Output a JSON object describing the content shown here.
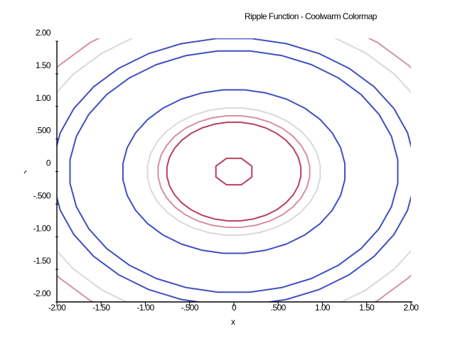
{
  "chart_data": {
    "type": "contour",
    "title": "Ripple Function - Coolwarm Colormap",
    "xlabel": "x",
    "ylabel": "y",
    "xlim": [
      -2.0,
      2.0
    ],
    "ylim": [
      -2.0,
      2.0
    ],
    "xticks": [
      {
        "value": -2.0,
        "label": "-2.00"
      },
      {
        "value": -1.5,
        "label": "-1.50"
      },
      {
        "value": -1.0,
        "label": "-1.00"
      },
      {
        "value": -0.5,
        "label": "-.500"
      },
      {
        "value": 0.0,
        "label": "0"
      },
      {
        "value": 0.5,
        "label": ".500"
      },
      {
        "value": 1.0,
        "label": "1.00"
      },
      {
        "value": 1.5,
        "label": "1.50"
      },
      {
        "value": 2.0,
        "label": "2.00"
      }
    ],
    "yticks": [
      {
        "value": 2.0,
        "label": "2.00"
      },
      {
        "value": 1.5,
        "label": "1.50"
      },
      {
        "value": 1.0,
        "label": "1.00"
      },
      {
        "value": 0.5,
        "label": ".500"
      },
      {
        "value": 0.0,
        "label": "0"
      },
      {
        "value": -0.5,
        "label": "-.500"
      },
      {
        "value": -1.0,
        "label": "-1.00"
      },
      {
        "value": -1.5,
        "label": "-1.50"
      },
      {
        "value": -2.0,
        "label": "-2.00"
      }
    ],
    "grid": false,
    "contours": [
      {
        "level": "high",
        "color": "#b8405e",
        "radius": 0.22
      },
      {
        "level": "high",
        "color": "#b8405e",
        "radius": 0.76
      },
      {
        "level": "mid-high",
        "color": "#d6909f",
        "radius": 0.86
      },
      {
        "level": "neutral",
        "color": "#d9d9d9",
        "radius": 0.98
      },
      {
        "level": "low",
        "color": "#3f4fbf",
        "radius": 1.26
      },
      {
        "level": "low",
        "color": "#3f4fbf",
        "radius": 1.86
      },
      {
        "level": "low",
        "color": "#3f4fbf",
        "radius": 2.05
      },
      {
        "level": "neutral",
        "color": "#d9d9d9",
        "radius": 2.35
      },
      {
        "level": "mid-high",
        "color": "#d6909f",
        "radius": 2.56
      }
    ]
  }
}
